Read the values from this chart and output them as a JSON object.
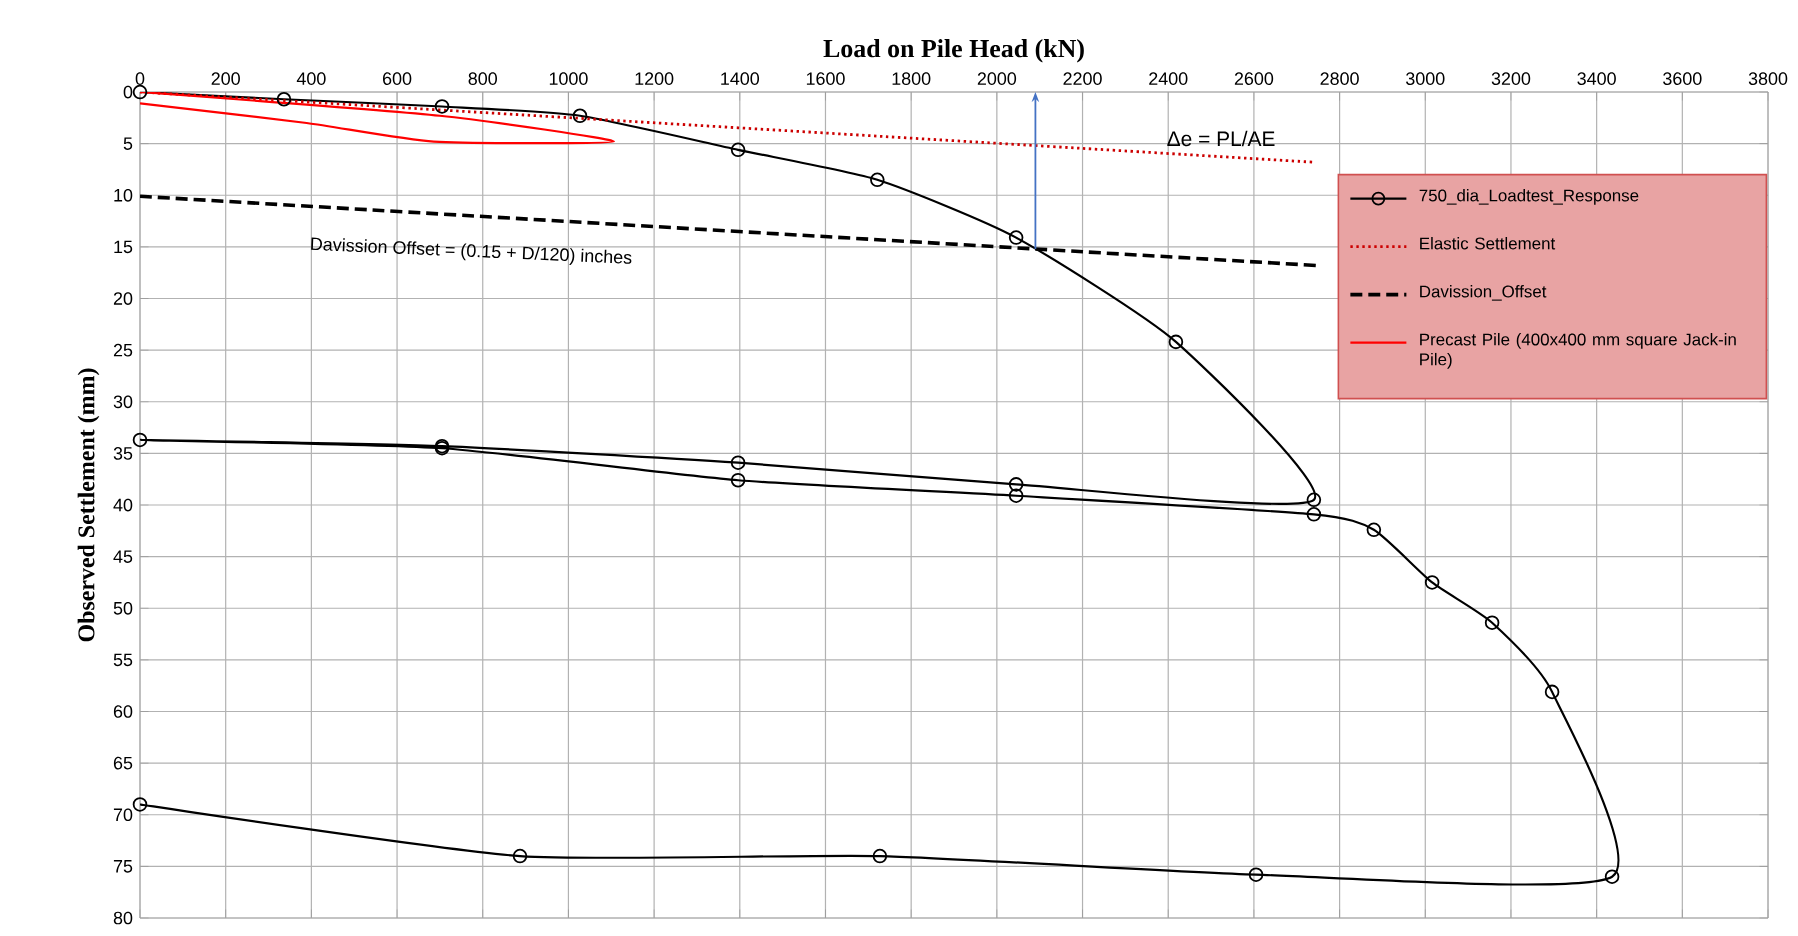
{
  "chart_data": {
    "type": "line",
    "xlabel": "Load on Pile Head (kN)",
    "ylabel": "Observed Settlement (mm)",
    "xlim": [
      0,
      3800
    ],
    "ylim": [
      80,
      0
    ],
    "xticks": [
      0,
      200,
      400,
      600,
      800,
      1000,
      1200,
      1400,
      1600,
      1800,
      2000,
      2200,
      2400,
      2600,
      2800,
      3000,
      3200,
      3400,
      3600,
      3800
    ],
    "yticks": [
      0,
      5,
      10,
      15,
      20,
      25,
      30,
      35,
      40,
      45,
      50,
      55,
      60,
      65,
      70,
      75,
      80
    ],
    "grid": true,
    "legend": "top right",
    "series": [
      {
        "name": "750_dia_Loadtest_Response",
        "color": "#000000",
        "marker": "circle",
        "line_style": "solid",
        "x": [
          0,
          336,
          705,
          1027,
          1396,
          1721,
          2045,
          2418,
          2740,
          2045,
          1396,
          705,
          0,
          705,
          1396,
          2045,
          2740,
          2880,
          3016,
          3156,
          3296,
          3436,
          2605,
          1727,
          887,
          0
        ],
        "values": [
          0,
          0.7,
          1.4,
          2.3,
          5.6,
          8.5,
          14.1,
          24.2,
          39.5,
          38,
          35.9,
          34.3,
          33.7,
          34.5,
          37.6,
          39.1,
          40.9,
          42.4,
          47.5,
          51.4,
          58.1,
          76,
          75.8,
          74,
          74,
          69
        ]
      },
      {
        "name": "Elastic Settlement",
        "color": "#cc0000",
        "marker": "none",
        "line_style": "dotted",
        "x": [
          0,
          2740
        ],
        "values": [
          0,
          6.8
        ]
      },
      {
        "name": "Davission_Offset",
        "color": "#000000",
        "marker": "none",
        "line_style": "dashed",
        "x": [
          0,
          2745
        ],
        "values": [
          10.1,
          16.8
        ]
      },
      {
        "name": "Precast Pile (400x400 mm square Jack-in Pile)",
        "color": "#ff0000",
        "marker": "none",
        "line_style": "solid",
        "x": [
          0,
          700,
          1106,
          686,
          389,
          0
        ],
        "values": [
          0,
          2.3,
          4.8,
          4.8,
          3.0,
          1.1
        ]
      }
    ],
    "ref_lines": [
      {
        "axis": "x",
        "value": 2090,
        "color": "#4472c4"
      }
    ],
    "annotations": [
      "Δe = PL/AE",
      "Davission Offset = (0.15 + D/120) inches"
    ]
  }
}
